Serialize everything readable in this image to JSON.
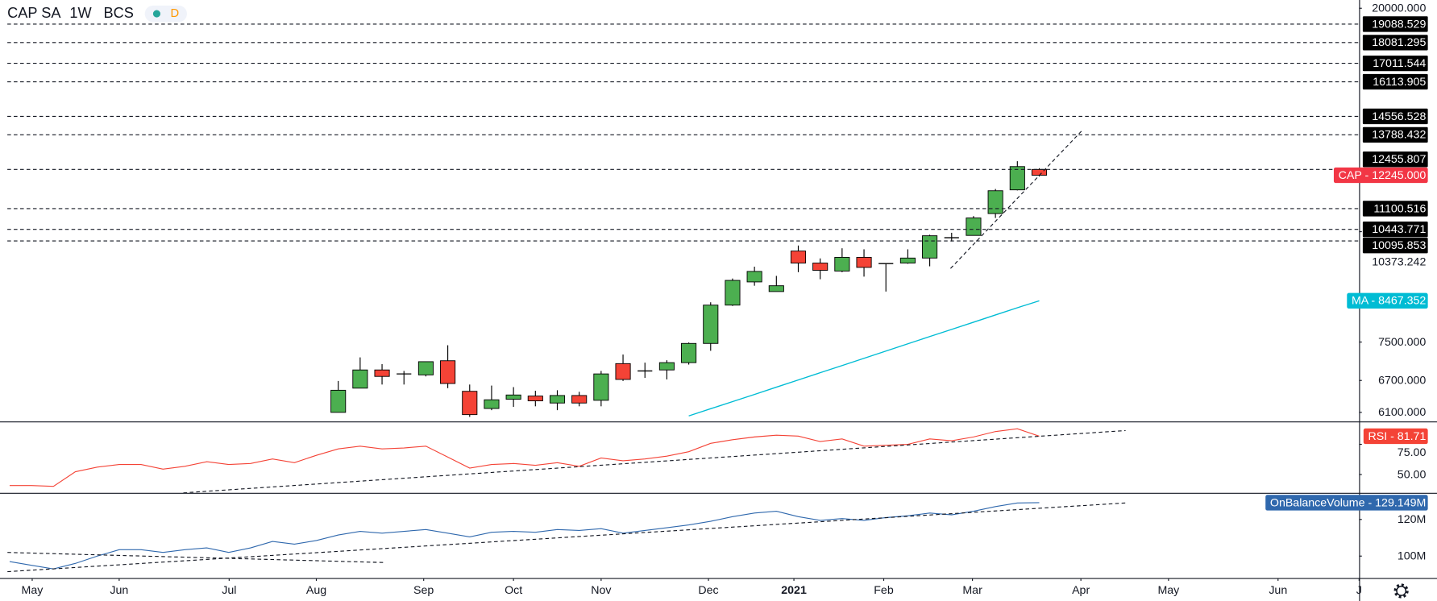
{
  "header": {
    "symbol": "CAP SA",
    "interval": "1W",
    "exchange": "BCS",
    "badge": "D"
  },
  "chart_data": [
    {
      "type": "candlestick",
      "name": "CAP",
      "tag": "CAP - 12245.000",
      "color": "#f23645",
      "up_color": "#4caf50",
      "down_color": "#f44336",
      "log_scale": true,
      "xlim": [
        -0.44,
        61.6
      ],
      "ylim": [
        5940,
        20490
      ],
      "yticks": [
        {
          "value": 20000,
          "label": "20000.000"
        },
        10373.242,
        {
          "value": 7500,
          "label": "7500.000"
        },
        {
          "value": 6700,
          "label": "6700.000"
        },
        {
          "value": 6100,
          "label": "6100.000"
        }
      ],
      "x": [
        15,
        16,
        17,
        18,
        19,
        20,
        21,
        22,
        23,
        24,
        25,
        26,
        27,
        28,
        29,
        30,
        31,
        32,
        33,
        34,
        35,
        36,
        37,
        38,
        39,
        40,
        41,
        42,
        43,
        44,
        45,
        46,
        47
      ],
      "open": [
        6100,
        6550,
        6910,
        6830,
        6810,
        7100,
        6490,
        6170,
        6340,
        6400,
        6270,
        6410,
        6320,
        7040,
        6890,
        6910,
        7060,
        7470,
        8360,
        8950,
        8700,
        9800,
        9460,
        9240,
        9620,
        9450,
        9460,
        9600,
        10180,
        10260,
        10940,
        11730,
        12455
      ],
      "high": [
        6690,
        7170,
        7030,
        6890,
        7080,
        7430,
        6620,
        6600,
        6570,
        6500,
        6510,
        6480,
        6890,
        7230,
        7060,
        7110,
        7490,
        8430,
        9040,
        9360,
        9110,
        9960,
        9590,
        9880,
        9850,
        9460,
        9850,
        10280,
        10340,
        10860,
        11760,
        12760,
        12500
      ],
      "low": [
        6100,
        6550,
        6620,
        6620,
        6780,
        6550,
        6020,
        6140,
        6200,
        6210,
        6140,
        6210,
        6210,
        6690,
        6750,
        6720,
        7020,
        7310,
        8340,
        8850,
        8700,
        9210,
        9020,
        9210,
        9090,
        8700,
        9440,
        9370,
        10080,
        10260,
        10800,
        11710,
        12200
      ],
      "close": [
        6510,
        6910,
        6780,
        6830,
        7080,
        6640,
        6060,
        6330,
        6420,
        6310,
        6410,
        6270,
        6830,
        6720,
        6890,
        7060,
        7470,
        8360,
        8990,
        9230,
        8850,
        9460,
        9260,
        9620,
        9340,
        9440,
        9600,
        10250,
        10200,
        10800,
        11700,
        12560,
        12245
      ],
      "overlays": [
        {
          "name": "MA",
          "tag": "MA - 8467.352",
          "color": "#00bcd4",
          "x": [
            31,
            32,
            33,
            34,
            35,
            36,
            37,
            38,
            39,
            40,
            41,
            42,
            43,
            44,
            45,
            46,
            47
          ],
          "values": [
            6037,
            6166,
            6296,
            6430,
            6569,
            6710,
            6854,
            7000,
            7150,
            7304,
            7462,
            7622,
            7784,
            7951,
            8122,
            8296,
            8467.352
          ]
        }
      ],
      "levels": [
        19088.529,
        18081.295,
        17011.544,
        16113.905,
        14556.528,
        13788.432,
        12455.807,
        11100.516,
        10443.771,
        10095.853
      ],
      "trendlines": [
        {
          "x": [
            42.95,
            48.93
          ],
          "y": [
            9311,
            13942
          ]
        }
      ]
    },
    {
      "type": "line",
      "name": "RSI",
      "tag": "RSI - 81.71",
      "color": "#f44336",
      "xlim": [
        -0.44,
        61.6
      ],
      "ylim": [
        34.8,
        93.2
      ],
      "yticks": [
        {
          "value": 75,
          "label": "75.00"
        },
        {
          "value": 50,
          "label": "50.00"
        }
      ],
      "x": [
        0,
        1,
        2,
        3,
        4,
        5,
        6,
        7,
        8,
        9,
        10,
        11,
        12,
        13,
        14,
        15,
        16,
        17,
        18,
        19,
        20,
        21,
        22,
        23,
        24,
        25,
        26,
        27,
        28,
        29,
        30,
        31,
        32,
        33,
        34,
        35,
        36,
        37,
        38,
        39,
        40,
        41,
        42,
        43,
        44,
        45,
        46,
        47
      ],
      "values": [
        40.9,
        40.9,
        40.2,
        52.3,
        56.1,
        58.3,
        58.3,
        54.5,
        56.8,
        60.6,
        58.3,
        59.1,
        62.9,
        59.8,
        65.9,
        71.2,
        73.5,
        71.2,
        72.0,
        73.5,
        64.4,
        55.3,
        58.3,
        59.1,
        57.6,
        59.8,
        56.8,
        63.7,
        61.4,
        62.9,
        65.2,
        68.9,
        75.8,
        78.8,
        81.1,
        82.6,
        81.8,
        77.3,
        79.5,
        73.5,
        74.2,
        75.0,
        79.5,
        78.0,
        81.1,
        85.6,
        87.9,
        81.71
      ],
      "trendlines": [
        {
          "x": [
            7.93,
            50.94
          ],
          "y": [
            34.85,
            86.4
          ]
        }
      ]
    },
    {
      "type": "line",
      "name": "OnBalanceVolume",
      "tag": "OnBalanceVolume - 129.149M",
      "color": "#2f68ad",
      "xlim": [
        -0.44,
        61.6
      ],
      "ylim": [
        88000000,
        134000000
      ],
      "yticks": [
        {
          "value": 120000000,
          "label": "120M"
        },
        {
          "value": 100000000,
          "label": "100M"
        }
      ],
      "xticks": [
        {
          "value": 1.03,
          "label": "May"
        },
        {
          "value": 5.0,
          "label": "Jun"
        },
        {
          "value": 10.02,
          "label": "Jul"
        },
        {
          "value": 14.0,
          "label": "Aug"
        },
        {
          "value": 18.9,
          "label": "Sep"
        },
        {
          "value": 23.0,
          "label": "Oct"
        },
        {
          "value": 27.0,
          "label": "Nov"
        },
        {
          "value": 31.9,
          "label": "Dec"
        },
        {
          "value": 35.8,
          "label": "2021"
        },
        {
          "value": 39.9,
          "label": "Feb"
        },
        {
          "value": 43.95,
          "label": "Mar"
        },
        {
          "value": 48.9,
          "label": "Apr"
        },
        {
          "value": 52.9,
          "label": "May"
        },
        {
          "value": 57.9,
          "label": "Jun"
        },
        {
          "value": 61.6,
          "label": "J"
        }
      ],
      "x": [
        0,
        1,
        2,
        3,
        4,
        5,
        6,
        7,
        8,
        9,
        10,
        11,
        12,
        13,
        14,
        15,
        16,
        17,
        18,
        19,
        20,
        21,
        22,
        23,
        24,
        25,
        26,
        27,
        28,
        29,
        30,
        31,
        32,
        33,
        34,
        35,
        36,
        37,
        38,
        39,
        40,
        41,
        42,
        43,
        44,
        45,
        46,
        47
      ],
      "values": [
        97000000,
        95000000,
        93000000,
        96000000,
        100000000,
        103500000,
        103500000,
        102000000,
        103500000,
        104500000,
        102000000,
        104500000,
        108000000,
        106500000,
        108500000,
        111500000,
        113500000,
        112500000,
        113500000,
        114500000,
        112500000,
        110500000,
        113000000,
        113500000,
        113000000,
        114500000,
        114000000,
        115000000,
        112500000,
        114000000,
        115500000,
        117000000,
        119000000,
        121500000,
        123500000,
        124500000,
        121500000,
        119500000,
        120500000,
        119500000,
        121000000,
        122000000,
        123500000,
        122500000,
        124500000,
        127000000,
        129000000,
        129149000
      ],
      "trendlines": [
        {
          "x": [
            -0.1,
            50.94
          ],
          "y": [
            91500000,
            129000000
          ]
        },
        {
          "x": [
            -0.1,
            17.05
          ],
          "y": [
            102000000,
            96500000
          ]
        }
      ]
    }
  ]
}
